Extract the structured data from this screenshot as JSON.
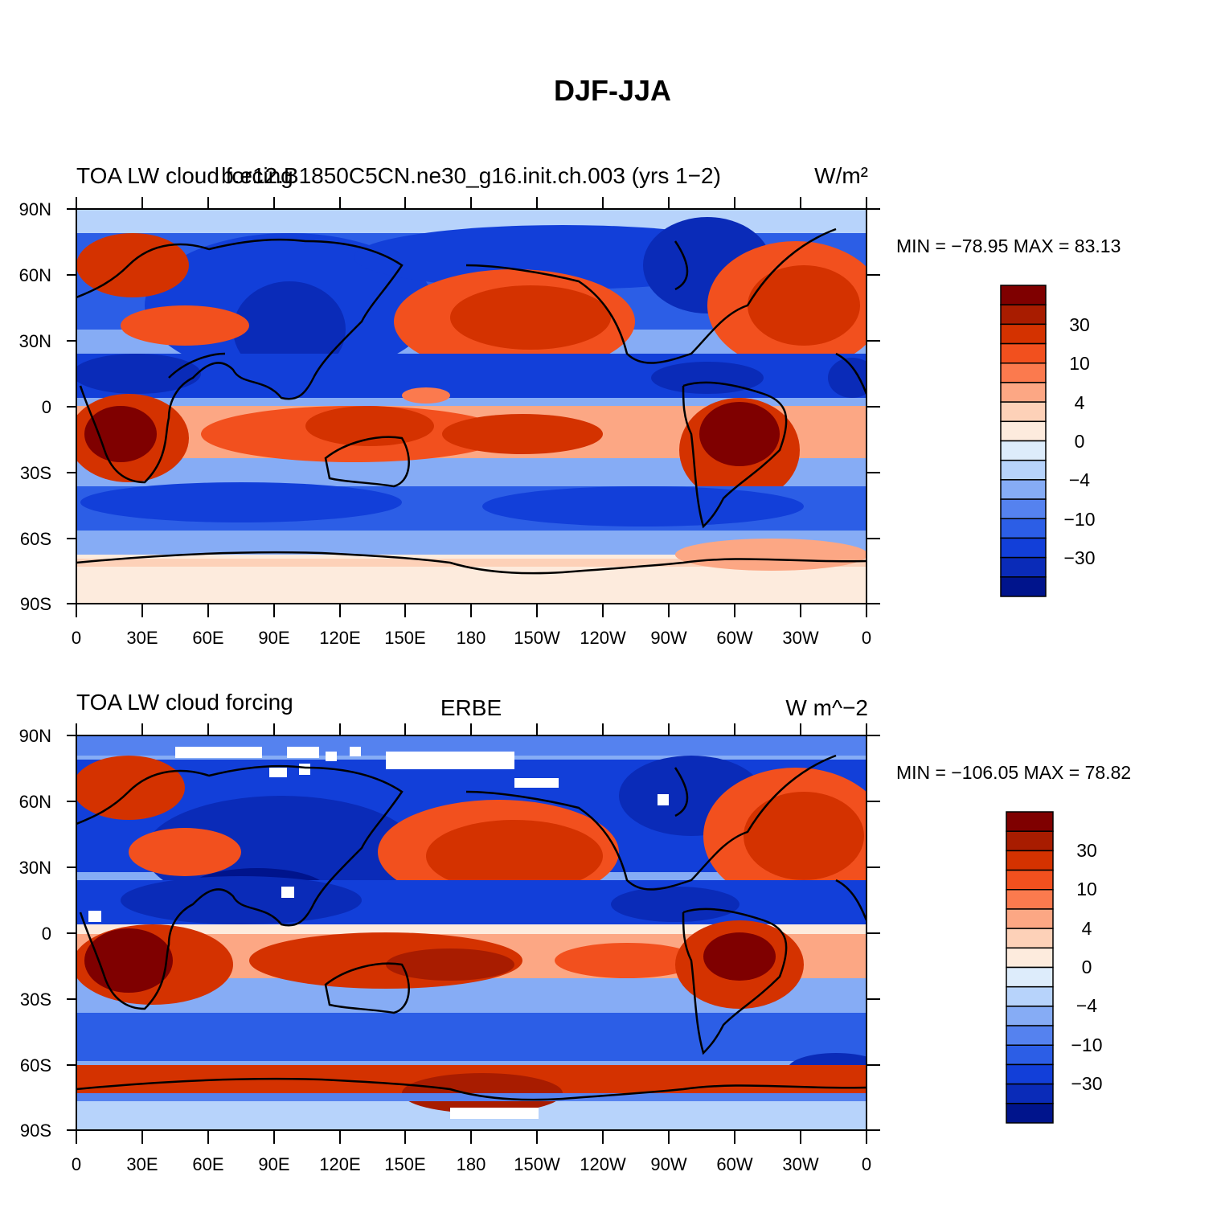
{
  "title": "DJF-JJA",
  "colorbar_levels": [
    "30",
    "10",
    "4",
    "0",
    "−4",
    "−10",
    "−30"
  ],
  "colorbar_colors": [
    "#7f0000",
    "#a81c00",
    "#d43200",
    "#f2501e",
    "#fb7a4e",
    "#fca784",
    "#fdd1b8",
    "#fdebdd",
    "#ddecfb",
    "#b7d3fb",
    "#86acf5",
    "#5582ef",
    "#2c5ee6",
    "#123fd9",
    "#0a2bb8",
    "#00148c"
  ],
  "lat_ticks": [
    "90N",
    "60N",
    "30N",
    "0",
    "30S",
    "60S",
    "90S"
  ],
  "lon_ticks": [
    "0",
    "30E",
    "60E",
    "90E",
    "120E",
    "150E",
    "180",
    "150W",
    "120W",
    "90W",
    "60W",
    "30W",
    "0"
  ],
  "panels": [
    {
      "left_title": "TOA LW cloud forcing",
      "center_title": "b.e12.B1850C5CN.ne30_g16.init.ch.003 (yrs 1−2)",
      "units": "W/m²",
      "stats": "MIN = −78.95  MAX =   83.13"
    },
    {
      "left_title": "TOA LW cloud forcing",
      "center_title": "ERBE",
      "units": "W m^−2",
      "stats": "MIN = −106.05  MAX =   78.82"
    }
  ]
}
